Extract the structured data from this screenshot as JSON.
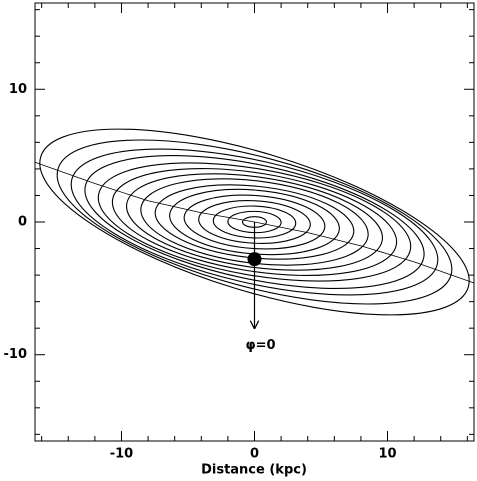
{
  "chart_data": {
    "type": "ellipses",
    "xlabel": "Distance (kpc)",
    "xlim": [
      -16.5,
      16.5
    ],
    "ylim": [
      -16.5,
      16.5
    ],
    "xticks": [
      -10,
      0,
      10
    ],
    "yticks": [
      -10,
      0,
      10
    ],
    "xminorticks": [
      -16,
      -14,
      -12,
      -8,
      -6,
      -4,
      -2,
      2,
      4,
      6,
      8,
      12,
      14,
      16
    ],
    "yminorticks": [
      -16,
      -14,
      -12,
      -8,
      -6,
      -4,
      -2,
      2,
      4,
      6,
      8,
      12,
      14,
      16
    ],
    "ellipses": {
      "a": [
        0.9,
        2.0,
        3.1,
        4.2,
        5.3,
        6.4,
        7.5,
        8.6,
        9.7,
        10.8,
        11.9,
        13.0,
        14.1,
        15.3,
        16.8
      ],
      "b": [
        0.4,
        0.8,
        1.2,
        1.6,
        2.0,
        2.4,
        2.7,
        3.1,
        3.4,
        3.7,
        4.0,
        4.3,
        4.6,
        4.9,
        5.2
      ],
      "angle": [
        0,
        -1,
        -2,
        -3,
        -4,
        -5,
        -6,
        -7,
        -8,
        -9,
        -10,
        -12,
        -13,
        -15,
        -17
      ]
    },
    "curve": {
      "x": [
        -16.5,
        -12,
        -8,
        -4,
        0,
        4,
        8,
        12,
        16.5
      ],
      "y": [
        4.5,
        2.9,
        1.6,
        0.7,
        0,
        -0.8,
        -1.8,
        -3.0,
        -4.6
      ]
    },
    "point": {
      "x": 0,
      "y": -2.8
    },
    "arrow": {
      "x": 0,
      "y_from": 0,
      "y_to": -8,
      "label": "φ=0",
      "label_y": -9.3
    }
  }
}
